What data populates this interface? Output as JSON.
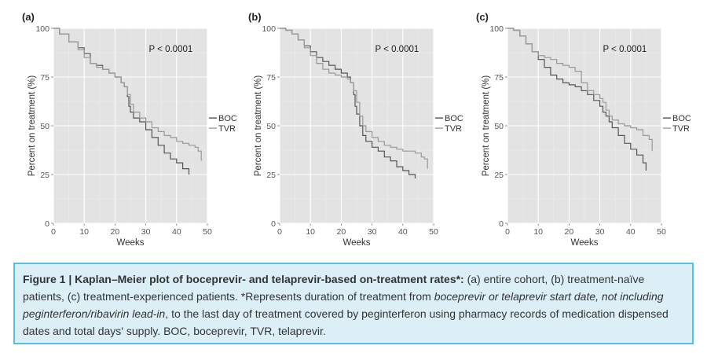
{
  "chart_data": [
    {
      "type": "line",
      "panel_label": "(a)",
      "xlabel": "Weeks",
      "ylabel": "Percent on treatment (%)",
      "xlim": [
        0,
        50
      ],
      "ylim": [
        0,
        100
      ],
      "x_ticks": [
        "0",
        "10",
        "20",
        "30",
        "40",
        "50"
      ],
      "y_ticks": [
        "0",
        "25",
        "50",
        "75",
        "100"
      ],
      "p_value": "P < 0.0001",
      "legend": [
        "BOC",
        "TVR"
      ],
      "legend_position": "right",
      "grid": true,
      "series": [
        {
          "name": "BOC",
          "color": "#555555",
          "x": [
            0,
            2,
            5,
            8,
            10,
            12,
            14,
            16,
            18,
            20,
            22,
            23,
            24,
            24.5,
            25,
            26,
            28,
            30,
            32,
            34,
            36,
            38,
            40,
            42,
            44
          ],
          "y": [
            100,
            97,
            93,
            90,
            87,
            82,
            81,
            79,
            77,
            75,
            72,
            70,
            65,
            60,
            57,
            54,
            52,
            48,
            44,
            40,
            36,
            33,
            31,
            28,
            25
          ]
        },
        {
          "name": "TVR",
          "color": "#999999",
          "x": [
            0,
            2,
            5,
            8,
            10,
            12,
            14,
            16,
            18,
            20,
            22,
            23,
            24,
            25,
            26,
            28,
            30,
            32,
            34,
            36,
            38,
            40,
            42,
            44,
            46,
            47,
            48
          ],
          "y": [
            100,
            97,
            93,
            89,
            85,
            82,
            80,
            79,
            77,
            75,
            72,
            70,
            66,
            61,
            57,
            54,
            52,
            49,
            47,
            45,
            44,
            42,
            41,
            40,
            39,
            37,
            32
          ]
        }
      ]
    },
    {
      "type": "line",
      "panel_label": "(b)",
      "xlabel": "Weeks",
      "ylabel": "Percent on treatment (%)",
      "xlim": [
        0,
        50
      ],
      "ylim": [
        0,
        100
      ],
      "x_ticks": [
        "0",
        "10",
        "20",
        "30",
        "40",
        "50"
      ],
      "y_ticks": [
        "0",
        "25",
        "50",
        "75",
        "100"
      ],
      "p_value": "P < 0.0001",
      "legend": [
        "BOC",
        "TVR"
      ],
      "legend_position": "right",
      "grid": true,
      "series": [
        {
          "name": "BOC",
          "color": "#555555",
          "x": [
            0,
            2,
            4,
            6,
            8,
            10,
            12,
            14,
            16,
            18,
            20,
            22,
            23,
            24,
            24.5,
            25,
            26,
            27,
            28,
            30,
            32,
            34,
            36,
            38,
            40,
            42,
            44
          ],
          "y": [
            100,
            99,
            97,
            94,
            91,
            88,
            85,
            83,
            81,
            79,
            77,
            75,
            72,
            66,
            60,
            56,
            50,
            45,
            42,
            39,
            37,
            34,
            32,
            29,
            27,
            25,
            23
          ]
        },
        {
          "name": "TVR",
          "color": "#999999",
          "x": [
            0,
            2,
            4,
            6,
            8,
            10,
            12,
            14,
            16,
            18,
            20,
            22,
            23,
            24,
            25,
            26,
            27,
            28,
            30,
            32,
            34,
            36,
            38,
            40,
            42,
            44,
            46,
            47,
            48
          ],
          "y": [
            100,
            99,
            97,
            94,
            90,
            86,
            82,
            79,
            77,
            76,
            75,
            74,
            72,
            68,
            62,
            55,
            50,
            47,
            44,
            42,
            40,
            39,
            38,
            37,
            37,
            36,
            34,
            33,
            28
          ]
        }
      ]
    },
    {
      "type": "line",
      "panel_label": "(c)",
      "xlabel": "Weeks",
      "ylabel": "Percent on treatment (%)",
      "xlim": [
        0,
        50
      ],
      "ylim": [
        0,
        100
      ],
      "x_ticks": [
        "0",
        "10",
        "20",
        "30",
        "40",
        "50"
      ],
      "y_ticks": [
        "0",
        "25",
        "50",
        "75",
        "100"
      ],
      "p_value": "P < 0.0001",
      "legend": [
        "BOC",
        "TVR"
      ],
      "legend_position": "right",
      "grid": true,
      "series": [
        {
          "name": "BOC",
          "color": "#555555",
          "x": [
            0,
            2,
            4,
            6,
            8,
            10,
            12,
            14,
            16,
            18,
            20,
            22,
            24,
            26,
            28,
            30,
            31,
            32,
            33,
            34,
            36,
            38,
            40,
            42,
            44,
            45
          ],
          "y": [
            100,
            99,
            96,
            92,
            88,
            84,
            80,
            76,
            74,
            72,
            71,
            70,
            68,
            66,
            63,
            60,
            57,
            55,
            52,
            49,
            45,
            41,
            38,
            35,
            31,
            27
          ]
        },
        {
          "name": "TVR",
          "color": "#999999",
          "x": [
            0,
            2,
            4,
            6,
            8,
            10,
            12,
            14,
            16,
            18,
            20,
            22,
            24,
            26,
            28,
            30,
            31,
            32,
            33,
            34,
            36,
            38,
            40,
            42,
            44,
            46,
            47
          ],
          "y": [
            100,
            99,
            96,
            92,
            88,
            86,
            85,
            84,
            82,
            81,
            80,
            78,
            72,
            68,
            66,
            64,
            62,
            58,
            55,
            53,
            51,
            50,
            49,
            48,
            45,
            43,
            37
          ]
        }
      ]
    }
  ],
  "caption": {
    "label": "Figure 1 | Kaplan–Meier plot of boceprevir- and telaprevir-based on-treatment rates*:",
    "text1": " (a) entire cohort, (b) treatment-naïve patients, (c) treatment-experienced patients. *Represents duration of treatment from ",
    "italic": "boceprevir or telaprevir start date, not including peginterferon/ribavirin lead-in",
    "text2": ", to the last day of treatment covered by peginterferon using pharmacy records of medication dispensed dates and total days' supply. BOC, boceprevir, TVR, telaprevir."
  }
}
